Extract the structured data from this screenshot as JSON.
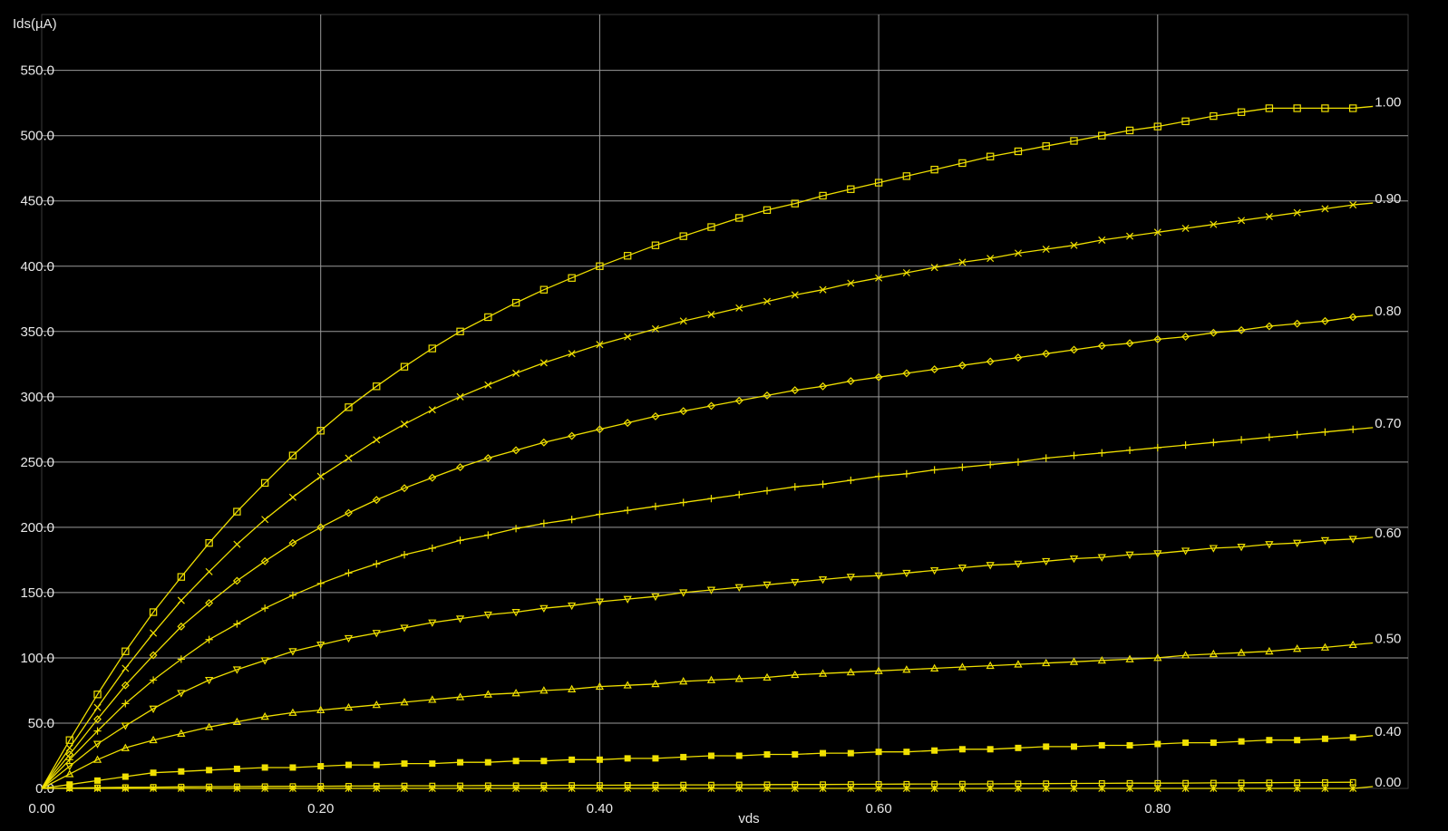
{
  "chart_data": {
    "type": "line",
    "title": "",
    "xlabel": "vds",
    "ylabel": "Ids(µA)",
    "xlim": [
      0,
      0.96
    ],
    "ylim": [
      0,
      600
    ],
    "x_ticks": [
      "0.00",
      "0.20",
      "0.40",
      "0.60",
      "0.80"
    ],
    "y_ticks": [
      "0.0",
      "50.0",
      "100.0",
      "150.0",
      "200.0",
      "250.0",
      "300.0",
      "350.0",
      "400.0",
      "450.0",
      "500.0",
      "550.0"
    ],
    "grid": true,
    "colors": {
      "background": "#000000",
      "curve": "#f0e000",
      "grid": "#9a9a9a",
      "text": "#e8e8e8"
    },
    "x": [
      0.0,
      0.02,
      0.04,
      0.06,
      0.08,
      0.1,
      0.12,
      0.14,
      0.16,
      0.18,
      0.2,
      0.22,
      0.24,
      0.26,
      0.28,
      0.3,
      0.32,
      0.34,
      0.36,
      0.38,
      0.4,
      0.42,
      0.44,
      0.46,
      0.48,
      0.5,
      0.52,
      0.54,
      0.56,
      0.58,
      0.6,
      0.62,
      0.64,
      0.66,
      0.68,
      0.7,
      0.72,
      0.74,
      0.76,
      0.78,
      0.8,
      0.82,
      0.84,
      0.86,
      0.88,
      0.9,
      0.92,
      0.94
    ],
    "series": [
      {
        "label": "1.00",
        "marker": "square",
        "values": [
          0,
          37,
          72,
          105,
          135,
          162,
          188,
          212,
          234,
          255,
          274,
          292,
          308,
          323,
          337,
          350,
          361,
          372,
          382,
          391,
          400,
          408,
          416,
          423,
          430,
          437,
          443,
          448,
          454,
          459,
          464,
          469,
          474,
          479,
          484,
          488,
          492,
          496,
          500,
          504,
          507,
          511,
          515,
          518,
          521,
          521,
          521,
          521
        ]
      },
      {
        "label": "0.90",
        "marker": "x",
        "values": [
          0,
          31,
          62,
          92,
          119,
          144,
          166,
          187,
          206,
          223,
          239,
          253,
          267,
          279,
          290,
          300,
          309,
          318,
          326,
          333,
          340,
          346,
          352,
          358,
          363,
          368,
          373,
          378,
          382,
          387,
          391,
          395,
          399,
          403,
          406,
          410,
          413,
          416,
          420,
          423,
          426,
          429,
          432,
          435,
          438,
          441,
          444,
          447
        ]
      },
      {
        "label": "0.80",
        "marker": "diamond",
        "values": [
          0,
          26,
          53,
          79,
          102,
          124,
          142,
          159,
          174,
          188,
          200,
          211,
          221,
          230,
          238,
          246,
          253,
          259,
          265,
          270,
          275,
          280,
          285,
          289,
          293,
          297,
          301,
          305,
          308,
          312,
          315,
          318,
          321,
          324,
          327,
          330,
          333,
          336,
          339,
          341,
          344,
          346,
          349,
          351,
          354,
          356,
          358,
          361
        ]
      },
      {
        "label": "0.70",
        "marker": "plus",
        "values": [
          0,
          22,
          44,
          65,
          83,
          99,
          114,
          126,
          138,
          148,
          157,
          165,
          172,
          179,
          184,
          190,
          194,
          199,
          203,
          206,
          210,
          213,
          216,
          219,
          222,
          225,
          228,
          231,
          233,
          236,
          239,
          241,
          244,
          246,
          248,
          250,
          253,
          255,
          257,
          259,
          261,
          263,
          265,
          267,
          269,
          271,
          273,
          275
        ]
      },
      {
        "label": "0.60",
        "marker": "triangle-down",
        "values": [
          0,
          17,
          34,
          48,
          61,
          73,
          83,
          91,
          98,
          105,
          110,
          115,
          119,
          123,
          127,
          130,
          133,
          135,
          138,
          140,
          143,
          145,
          147,
          150,
          152,
          154,
          156,
          158,
          160,
          162,
          163,
          165,
          167,
          169,
          171,
          172,
          174,
          176,
          177,
          179,
          180,
          182,
          184,
          185,
          187,
          188,
          190,
          191
        ]
      },
      {
        "label": "0.50",
        "marker": "triangle-up",
        "values": [
          0,
          11,
          22,
          31,
          37,
          42,
          47,
          51,
          55,
          58,
          60,
          62,
          64,
          66,
          68,
          70,
          72,
          73,
          75,
          76,
          78,
          79,
          80,
          82,
          83,
          84,
          85,
          87,
          88,
          89,
          90,
          91,
          92,
          93,
          94,
          95,
          96,
          97,
          98,
          99,
          100,
          102,
          103,
          104,
          105,
          107,
          108,
          110
        ]
      },
      {
        "label": "0.40",
        "marker": "filled-square",
        "values": [
          0,
          3,
          6,
          9,
          12,
          13,
          14,
          15,
          16,
          16,
          17,
          18,
          18,
          19,
          19,
          20,
          20,
          21,
          21,
          22,
          22,
          23,
          23,
          24,
          25,
          25,
          26,
          26,
          27,
          27,
          28,
          28,
          29,
          30,
          30,
          31,
          32,
          32,
          33,
          33,
          34,
          35,
          35,
          36,
          37,
          37,
          38,
          39
        ]
      },
      {
        "label": "",
        "marker": "small-square",
        "values": [
          0,
          0.3,
          0.6,
          0.8,
          1.0,
          1.2,
          1.3,
          1.4,
          1.5,
          1.6,
          1.7,
          1.8,
          1.9,
          2.0,
          2.0,
          2.1,
          2.2,
          2.2,
          2.3,
          2.4,
          2.4,
          2.5,
          2.6,
          2.7,
          2.7,
          2.8,
          2.9,
          3.0,
          3.0,
          3.1,
          3.2,
          3.3,
          3.4,
          3.4,
          3.5,
          3.6,
          3.7,
          3.8,
          3.9,
          4.0,
          4.0,
          4.1,
          4.2,
          4.3,
          4.4,
          4.5,
          4.6,
          4.7
        ]
      },
      {
        "label": "0.00",
        "marker": "asterisk",
        "values": [
          0,
          0,
          0,
          0,
          0,
          0,
          0,
          0,
          0,
          0,
          0,
          0,
          0,
          0,
          0,
          0,
          0,
          0,
          0,
          0,
          0,
          0,
          0,
          0,
          0,
          0,
          0,
          0,
          0,
          0,
          0,
          0,
          0,
          0,
          0,
          0,
          0,
          0,
          0,
          0,
          0,
          0,
          0,
          0,
          0,
          0,
          0,
          0
        ]
      }
    ]
  }
}
